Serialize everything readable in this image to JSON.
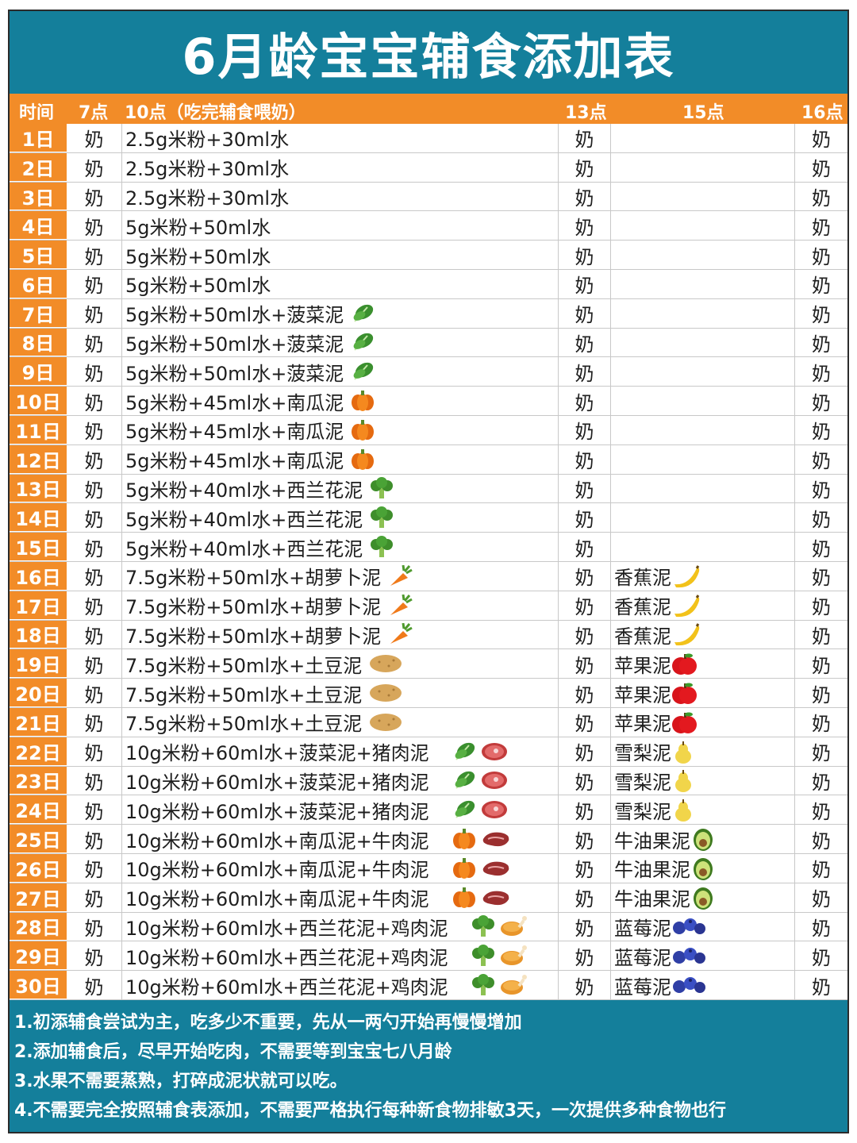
{
  "title": "6月龄宝宝辅食添加表",
  "header": {
    "time": "时间",
    "t7": "7点",
    "t10": "10点（吃完辅食喂奶）",
    "t13": "13点",
    "t15": "15点",
    "t16": "16点"
  },
  "milk": "奶",
  "rows": [
    {
      "day": "1日",
      "meal": "2.5g米粉+30ml水",
      "icons": [],
      "snack": "",
      "snack_icon": ""
    },
    {
      "day": "2日",
      "meal": "2.5g米粉+30ml水",
      "icons": [],
      "snack": "",
      "snack_icon": ""
    },
    {
      "day": "3日",
      "meal": "2.5g米粉+30ml水",
      "icons": [],
      "snack": "",
      "snack_icon": ""
    },
    {
      "day": "4日",
      "meal": "5g米粉+50ml水",
      "icons": [],
      "snack": "",
      "snack_icon": ""
    },
    {
      "day": "5日",
      "meal": "5g米粉+50ml水",
      "icons": [],
      "snack": "",
      "snack_icon": ""
    },
    {
      "day": "6日",
      "meal": "5g米粉+50ml水",
      "icons": [],
      "snack": "",
      "snack_icon": ""
    },
    {
      "day": "7日",
      "meal": "5g米粉+50ml水+菠菜泥",
      "icons": [
        "spinach-icon"
      ],
      "snack": "",
      "snack_icon": ""
    },
    {
      "day": "8日",
      "meal": "5g米粉+50ml水+菠菜泥",
      "icons": [
        "spinach-icon"
      ],
      "snack": "",
      "snack_icon": ""
    },
    {
      "day": "9日",
      "meal": "5g米粉+50ml水+菠菜泥",
      "icons": [
        "spinach-icon"
      ],
      "snack": "",
      "snack_icon": ""
    },
    {
      "day": "10日",
      "meal": "5g米粉+45ml水+南瓜泥",
      "icons": [
        "pumpkin-icon"
      ],
      "snack": "",
      "snack_icon": ""
    },
    {
      "day": "11日",
      "meal": "5g米粉+45ml水+南瓜泥",
      "icons": [
        "pumpkin-icon"
      ],
      "snack": "",
      "snack_icon": ""
    },
    {
      "day": "12日",
      "meal": "5g米粉+45ml水+南瓜泥",
      "icons": [
        "pumpkin-icon"
      ],
      "snack": "",
      "snack_icon": ""
    },
    {
      "day": "13日",
      "meal": "5g米粉+40ml水+西兰花泥",
      "icons": [
        "broccoli-icon"
      ],
      "snack": "",
      "snack_icon": ""
    },
    {
      "day": "14日",
      "meal": "5g米粉+40ml水+西兰花泥",
      "icons": [
        "broccoli-icon"
      ],
      "snack": "",
      "snack_icon": ""
    },
    {
      "day": "15日",
      "meal": "5g米粉+40ml水+西兰花泥",
      "icons": [
        "broccoli-icon"
      ],
      "snack": "",
      "snack_icon": ""
    },
    {
      "day": "16日",
      "meal": "7.5g米粉+50ml水+胡萝卜泥",
      "icons": [
        "carrot-icon"
      ],
      "snack": "香蕉泥",
      "snack_icon": "banana-icon"
    },
    {
      "day": "17日",
      "meal": "7.5g米粉+50ml水+胡萝卜泥",
      "icons": [
        "carrot-icon"
      ],
      "snack": "香蕉泥",
      "snack_icon": "banana-icon"
    },
    {
      "day": "18日",
      "meal": "7.5g米粉+50ml水+胡萝卜泥",
      "icons": [
        "carrot-icon"
      ],
      "snack": "香蕉泥",
      "snack_icon": "banana-icon"
    },
    {
      "day": "19日",
      "meal": "7.5g米粉+50ml水+土豆泥",
      "icons": [
        "potato-icon"
      ],
      "snack": "苹果泥",
      "snack_icon": "apple-icon"
    },
    {
      "day": "20日",
      "meal": "7.5g米粉+50ml水+土豆泥",
      "icons": [
        "potato-icon"
      ],
      "snack": "苹果泥",
      "snack_icon": "apple-icon"
    },
    {
      "day": "21日",
      "meal": "7.5g米粉+50ml水+土豆泥",
      "icons": [
        "potato-icon"
      ],
      "snack": "苹果泥",
      "snack_icon": "apple-icon"
    },
    {
      "day": "22日",
      "meal": "10g米粉+60ml水+菠菜泥+猪肉泥",
      "icons": [
        "spinach-icon",
        "pork-icon"
      ],
      "snack": "雪梨泥",
      "snack_icon": "pear-icon"
    },
    {
      "day": "23日",
      "meal": "10g米粉+60ml水+菠菜泥+猪肉泥",
      "icons": [
        "spinach-icon",
        "pork-icon"
      ],
      "snack": "雪梨泥",
      "snack_icon": "pear-icon"
    },
    {
      "day": "24日",
      "meal": "10g米粉+60ml水+菠菜泥+猪肉泥",
      "icons": [
        "spinach-icon",
        "pork-icon"
      ],
      "snack": "雪梨泥",
      "snack_icon": "pear-icon"
    },
    {
      "day": "25日",
      "meal": "10g米粉+60ml水+南瓜泥+牛肉泥",
      "icons": [
        "pumpkin-icon",
        "beef-icon"
      ],
      "snack": "牛油果泥",
      "snack_icon": "avocado-icon"
    },
    {
      "day": "26日",
      "meal": "10g米粉+60ml水+南瓜泥+牛肉泥",
      "icons": [
        "pumpkin-icon",
        "beef-icon"
      ],
      "snack": "牛油果泥",
      "snack_icon": "avocado-icon"
    },
    {
      "day": "27日",
      "meal": "10g米粉+60ml水+南瓜泥+牛肉泥",
      "icons": [
        "pumpkin-icon",
        "beef-icon"
      ],
      "snack": "牛油果泥",
      "snack_icon": "avocado-icon"
    },
    {
      "day": "28日",
      "meal": "10g米粉+60ml水+西兰花泥+鸡肉泥",
      "icons": [
        "broccoli-icon",
        "chicken-icon"
      ],
      "snack": "蓝莓泥",
      "snack_icon": "blueberry-icon"
    },
    {
      "day": "29日",
      "meal": "10g米粉+60ml水+西兰花泥+鸡肉泥",
      "icons": [
        "broccoli-icon",
        "chicken-icon"
      ],
      "snack": "蓝莓泥",
      "snack_icon": "blueberry-icon"
    },
    {
      "day": "30日",
      "meal": "10g米粉+60ml水+西兰花泥+鸡肉泥",
      "icons": [
        "broccoli-icon",
        "chicken-icon"
      ],
      "snack": "蓝莓泥",
      "snack_icon": "blueberry-icon"
    }
  ],
  "notes": [
    "1.初添辅食尝试为主，吃多少不重要，先从一两勺开始再慢慢增加",
    "2.添加辅食后，尽早开始吃肉，不需要等到宝宝七八月龄",
    "3.水果不需要蒸熟，打碎成泥状就可以吃。",
    "4.不需要完全按照辅食表添加，不需要严格执行每种新食物排敏3天，一次提供多种食物也行"
  ],
  "colors": {
    "teal": "#147f9b",
    "orange": "#f28c28"
  }
}
